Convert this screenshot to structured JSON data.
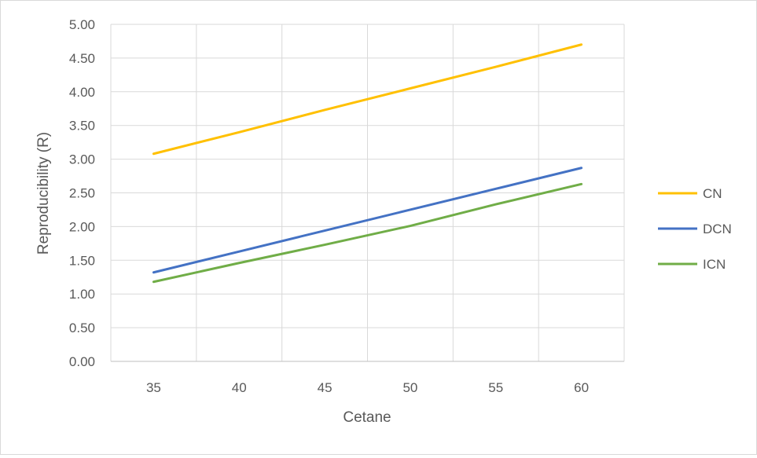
{
  "chart_data": {
    "type": "line",
    "title": "",
    "xlabel": "Cetane",
    "ylabel": "Reproducibility (R)",
    "xlim": [
      32.5,
      62.5
    ],
    "ylim": [
      0,
      5
    ],
    "x_ticks": [
      "35",
      "40",
      "45",
      "50",
      "55",
      "60"
    ],
    "y_ticks": [
      "0.00",
      "0.50",
      "1.00",
      "1.50",
      "2.00",
      "2.50",
      "3.00",
      "3.50",
      "4.00",
      "4.50",
      "5.00"
    ],
    "grid": true,
    "legend_position": "right",
    "x": [
      35,
      40,
      45,
      50,
      55,
      60
    ],
    "series": [
      {
        "name": "CN",
        "color": "#ffc000",
        "values": [
          3.08,
          3.4,
          3.73,
          4.05,
          4.37,
          4.7
        ]
      },
      {
        "name": "DCN",
        "color": "#4472c4",
        "values": [
          1.32,
          1.63,
          1.94,
          2.25,
          2.56,
          2.87
        ]
      },
      {
        "name": "ICN",
        "color": "#70ad47",
        "values": [
          1.18,
          1.46,
          1.73,
          2.01,
          2.33,
          2.63
        ]
      }
    ]
  }
}
